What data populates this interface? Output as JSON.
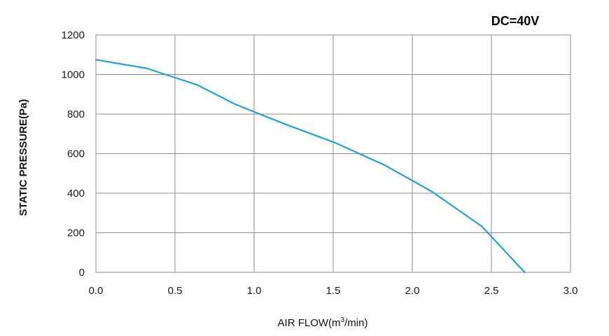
{
  "chart_data": {
    "type": "line",
    "title": "",
    "annotation": "DC=40V",
    "xlabel": {
      "prefix": "AIR FLOW(m",
      "superscript": "3",
      "suffix": "/min)"
    },
    "ylabel": "STATIC PRESSURE(Pa)",
    "xlim": [
      0,
      3.0
    ],
    "ylim": [
      0,
      1200
    ],
    "xticks": [
      "0.0",
      "0.5",
      "1.0",
      "1.5",
      "2.0",
      "2.5",
      "3.0"
    ],
    "yticks": [
      "0",
      "200",
      "400",
      "600",
      "800",
      "1000",
      "1200"
    ],
    "grid": true,
    "legend": "none",
    "series": [
      {
        "color": "#1fa3d4",
        "x": [
          0.0,
          0.32,
          0.64,
          0.88,
          1.2,
          1.51,
          1.83,
          2.13,
          2.44,
          2.71
        ],
        "y": [
          1075,
          1032,
          948,
          850,
          748,
          656,
          540,
          405,
          232,
          0
        ]
      }
    ]
  }
}
